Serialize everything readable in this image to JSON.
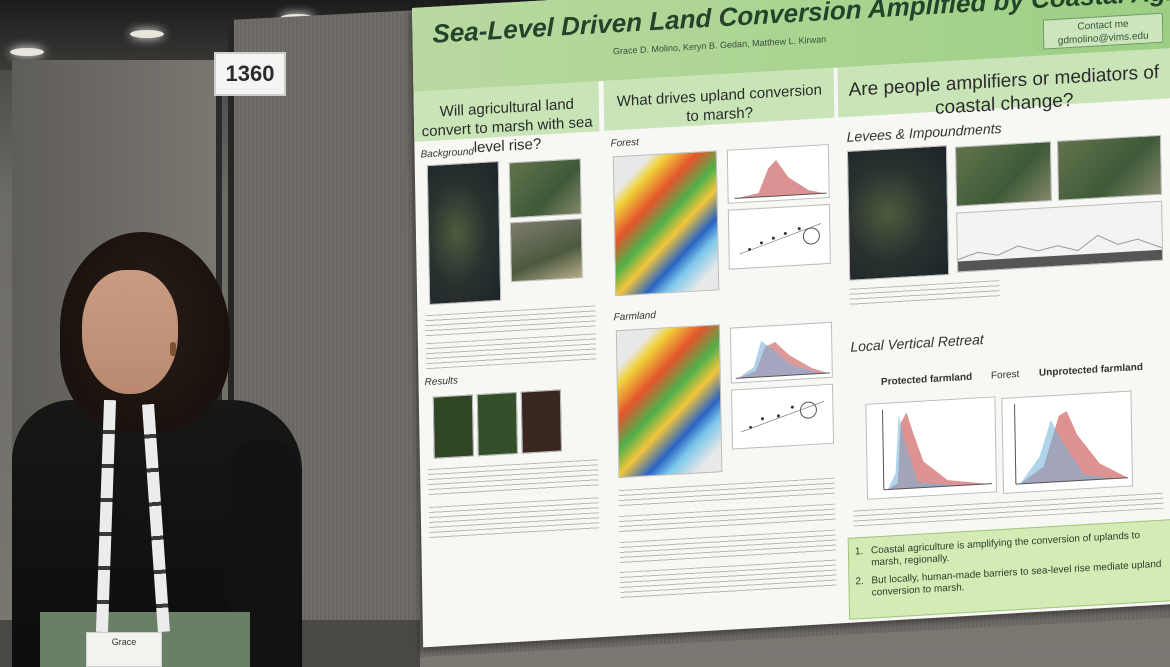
{
  "booth_number": "1360",
  "poster": {
    "title": "Sea-Level Driven Land Conversion Amplified by Coastal Agriculture",
    "authors": "Grace D. Molino, Keryn B. Gedan, Matthew L. Kirwan",
    "contact_label": "Contact me",
    "contact_email": "gdmolino@vims.edu",
    "sections": [
      {
        "heading": "Will agricultural land convert to marsh with sea level rise?",
        "subheads": [
          "Background",
          "Results"
        ]
      },
      {
        "heading": "What drives upland conversion to marsh?",
        "subheads": [
          "Forest",
          "Farmland"
        ]
      },
      {
        "heading": "Are people amplifiers or mediators of coastal change?",
        "subheads": [
          "Levees & Impoundments",
          "Local Vertical Retreat"
        ]
      }
    ],
    "retreat_labels": {
      "protected": "Protected farmland",
      "forest": "Forest",
      "unprotected": "Unprotected farmland"
    },
    "conclusions": [
      "Coastal agriculture is amplifying the conversion of uplands to marsh, regionally.",
      "But locally, human-made barriers to sea-level rise mediate upland conversion to marsh."
    ],
    "conclusion_numbers": [
      "1.",
      "2."
    ]
  },
  "badge_text": "Grace"
}
